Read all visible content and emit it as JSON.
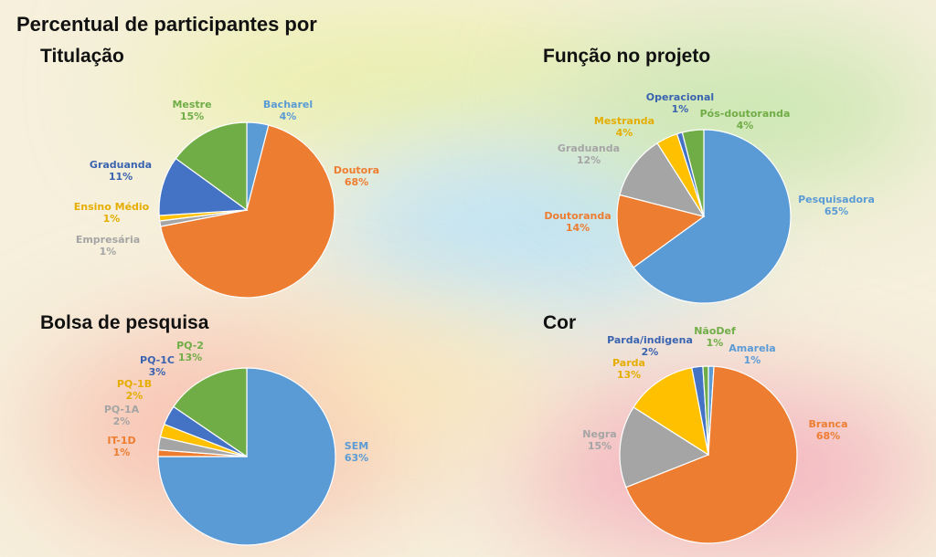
{
  "page": {
    "title": "Percentual de participantes por"
  },
  "chart_data": [
    {
      "type": "pie",
      "title": "Titulação",
      "slices": [
        {
          "label": "Bacharel",
          "value": 4,
          "value_label": "4%",
          "color": "#5b9bd5"
        },
        {
          "label": "Doutora",
          "value": 68,
          "value_label": "68%",
          "color": "#ed7d31"
        },
        {
          "label": "Empresária",
          "value": 1,
          "value_label": "1%",
          "color": "#a5a5a5"
        },
        {
          "label": "Ensino Médio",
          "value": 1,
          "value_label": "1%",
          "color": "#ffc000"
        },
        {
          "label": "Graduanda",
          "value": 11,
          "value_label": "11%",
          "color": "#4472c4"
        },
        {
          "label": "Mestre",
          "value": 15,
          "value_label": "15%",
          "color": "#70ad47"
        }
      ]
    },
    {
      "type": "pie",
      "title": "Função no projeto",
      "slices": [
        {
          "label": "Pesquisadora",
          "value": 65,
          "value_label": "65%",
          "color": "#5b9bd5"
        },
        {
          "label": "Doutoranda",
          "value": 14,
          "value_label": "14%",
          "color": "#ed7d31"
        },
        {
          "label": "Graduanda",
          "value": 12,
          "value_label": "12%",
          "color": "#a5a5a5"
        },
        {
          "label": "Mestranda",
          "value": 4,
          "value_label": "4%",
          "color": "#ffc000"
        },
        {
          "label": "Operacional",
          "value": 1,
          "value_label": "1%",
          "color": "#4472c4"
        },
        {
          "label": "Pós-doutoranda",
          "value": 4,
          "value_label": "4%",
          "color": "#70ad47"
        }
      ]
    },
    {
      "type": "pie",
      "title": "Bolsa de pesquisa",
      "slices": [
        {
          "label": "SEM",
          "value": 63,
          "value_label": "63%",
          "color": "#5b9bd5"
        },
        {
          "label": "IT-1D",
          "value": 1,
          "value_label": "1%",
          "color": "#ed7d31"
        },
        {
          "label": "PQ-1A",
          "value": 2,
          "value_label": "2%",
          "color": "#a5a5a5"
        },
        {
          "label": "PQ-1B",
          "value": 2,
          "value_label": "2%",
          "color": "#ffc000"
        },
        {
          "label": "PQ-1C",
          "value": 3,
          "value_label": "3%",
          "color": "#4472c4"
        },
        {
          "label": "PQ-2",
          "value": 13,
          "value_label": "13%",
          "color": "#70ad47"
        }
      ]
    },
    {
      "type": "pie",
      "title": "Cor",
      "slices": [
        {
          "label": "Amarela",
          "value": 1,
          "value_label": "1%",
          "color": "#5b9bd5"
        },
        {
          "label": "Branca",
          "value": 68,
          "value_label": "68%",
          "color": "#ed7d31"
        },
        {
          "label": "Negra",
          "value": 15,
          "value_label": "15%",
          "color": "#a5a5a5"
        },
        {
          "label": "Parda",
          "value": 13,
          "value_label": "13%",
          "color": "#ffc000"
        },
        {
          "label": "Parda/indigena",
          "value": 2,
          "value_label": "2%",
          "color": "#4472c4"
        },
        {
          "label": "NãoDef",
          "value": 1,
          "value_label": "1%",
          "color": "#70ad47"
        }
      ]
    }
  ]
}
